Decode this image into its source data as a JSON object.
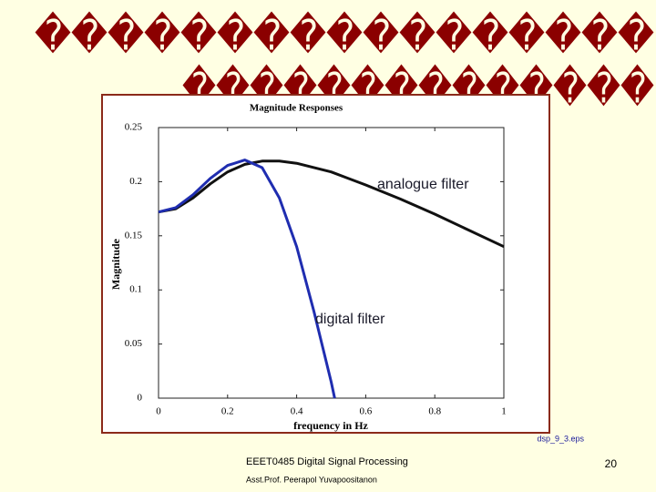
{
  "slide": {
    "title_lines": [
      "�����������������",
      "��������������"
    ],
    "caption": "dsp_9_3.eps",
    "footer": [
      "EEET0485 Digital Signal Processing",
      "Asst.Prof. Peerapol Yuvapoositanon"
    ],
    "page_number": "20"
  },
  "chart_data": {
    "type": "line",
    "title": "Magnitude Responses",
    "x_label": "frequency in Hz",
    "y_label": "Magnitude",
    "annotations": [
      "analogue filter",
      "digital filter"
    ],
    "xlim": [
      0,
      1
    ],
    "ylim": [
      0,
      0.25
    ],
    "xticks": [
      0,
      0.2,
      0.4,
      0.6,
      0.8,
      1
    ],
    "yticks": [
      0,
      0.05,
      0.1,
      0.15,
      0.2,
      0.25
    ],
    "series": [
      {
        "color": "#111111",
        "x": [
          0,
          0.05,
          0.1,
          0.15,
          0.2,
          0.25,
          0.3,
          0.35,
          0.4,
          0.5,
          0.6,
          0.7,
          0.8,
          0.9,
          1
        ],
        "values": [
          0.172,
          0.175,
          0.185,
          0.198,
          0.209,
          0.216,
          0.219,
          0.219,
          0.217,
          0.209,
          0.197,
          0.184,
          0.17,
          0.155,
          0.14
        ]
      },
      {
        "color": "#1f2db0",
        "x": [
          0,
          0.05,
          0.1,
          0.15,
          0.2,
          0.25,
          0.3,
          0.35,
          0.4,
          0.45,
          0.5,
          0.51
        ],
        "values": [
          0.172,
          0.176,
          0.188,
          0.203,
          0.215,
          0.22,
          0.213,
          0.185,
          0.14,
          0.08,
          0.015,
          0
        ]
      }
    ]
  }
}
